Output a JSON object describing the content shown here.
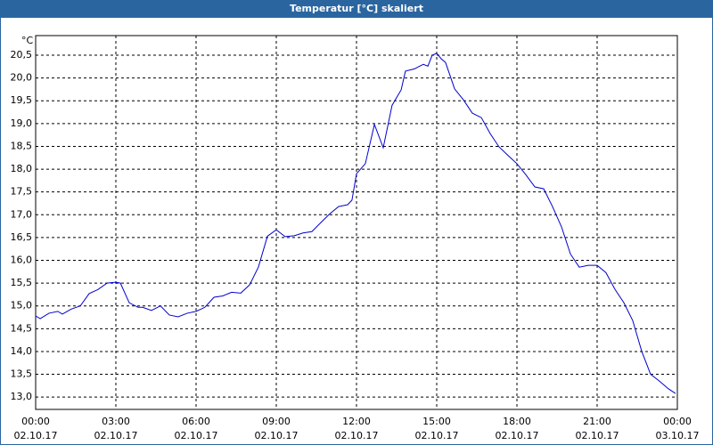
{
  "chart_data": {
    "type": "line",
    "title": "Temperatur [°C] skaliert",
    "y_label": "°C",
    "x": [
      0,
      0.17,
      0.5,
      0.83,
      1,
      1.33,
      1.67,
      2,
      2.33,
      2.67,
      3,
      3.17,
      3.5,
      3.83,
      4,
      4.33,
      4.67,
      5,
      5.33,
      5.67,
      6,
      6.33,
      6.67,
      7,
      7.33,
      7.67,
      8,
      8.33,
      8.67,
      9,
      9.33,
      9.67,
      10,
      10.33,
      10.67,
      11,
      11.33,
      11.67,
      11.83,
      12,
      12.33,
      12.67,
      13,
      13.33,
      13.67,
      13.83,
      14.17,
      14.33,
      14.5,
      14.67,
      14.83,
      15,
      15.17,
      15.33,
      15.67,
      16,
      16.33,
      16.67,
      17,
      17.33,
      17.67,
      18,
      18.33,
      18.67,
      19,
      19.33,
      19.67,
      20,
      20.33,
      20.67,
      21,
      21.33,
      21.67,
      22,
      22.33,
      22.67,
      23,
      23.33,
      23.67,
      23.93
    ],
    "series": [
      {
        "color": "#0000cc",
        "values": [
          14.78,
          14.72,
          14.84,
          14.88,
          14.82,
          14.93,
          15.0,
          15.27,
          15.36,
          15.5,
          15.52,
          15.5,
          15.07,
          14.97,
          14.97,
          14.9,
          15.0,
          14.8,
          14.76,
          14.84,
          14.88,
          14.97,
          15.19,
          15.22,
          15.3,
          15.28,
          15.46,
          15.85,
          16.53,
          16.67,
          16.52,
          16.54,
          16.6,
          16.63,
          16.83,
          17.02,
          17.18,
          17.22,
          17.32,
          17.9,
          18.12,
          18.98,
          18.47,
          19.4,
          19.74,
          20.15,
          20.2,
          20.25,
          20.3,
          20.26,
          20.5,
          20.54,
          20.42,
          20.34,
          19.76,
          19.52,
          19.23,
          19.13,
          18.78,
          18.49,
          18.3,
          18.12,
          17.88,
          17.61,
          17.57,
          17.18,
          16.73,
          16.14,
          15.85,
          15.89,
          15.89,
          15.73,
          15.36,
          15.07,
          14.68,
          14.0,
          13.5,
          13.35,
          13.18,
          13.08
        ]
      }
    ],
    "xlim": [
      0,
      24
    ],
    "xticks": [
      {
        "value": 0,
        "label": "00:00"
      },
      {
        "value": 3,
        "label": "03:00"
      },
      {
        "value": 6,
        "label": "06:00"
      },
      {
        "value": 9,
        "label": "09:00"
      },
      {
        "value": 12,
        "label": "12:00"
      },
      {
        "value": 15,
        "label": "15:00"
      },
      {
        "value": 18,
        "label": "18:00"
      },
      {
        "value": 21,
        "label": "21:00"
      },
      {
        "value": 24,
        "label": "00:00"
      }
    ],
    "xtick_dates": [
      "02.10.17",
      "02.10.17",
      "02.10.17",
      "02.10.17",
      "02.10.17",
      "02.10.17",
      "02.10.17",
      "02.10.17",
      "03.10.17"
    ],
    "ylim": [
      12.73,
      20.93
    ],
    "yticks": [
      {
        "value": 13,
        "label": "13,0"
      },
      {
        "value": 13.5,
        "label": "13,5"
      },
      {
        "value": 14,
        "label": "14,0"
      },
      {
        "value": 14.5,
        "label": "14,5"
      },
      {
        "value": 15,
        "label": "15,0"
      },
      {
        "value": 15.5,
        "label": "15,5"
      },
      {
        "value": 16,
        "label": "16,0"
      },
      {
        "value": 16.5,
        "label": "16,5"
      },
      {
        "value": 17,
        "label": "17,0"
      },
      {
        "value": 17.5,
        "label": "17,5"
      },
      {
        "value": 18,
        "label": "18,0"
      },
      {
        "value": 18.5,
        "label": "18,5"
      },
      {
        "value": 19,
        "label": "19,0"
      },
      {
        "value": 19.5,
        "label": "19,5"
      },
      {
        "value": 20,
        "label": "20,0"
      },
      {
        "value": 20.5,
        "label": "20,5"
      }
    ],
    "grid": true
  }
}
